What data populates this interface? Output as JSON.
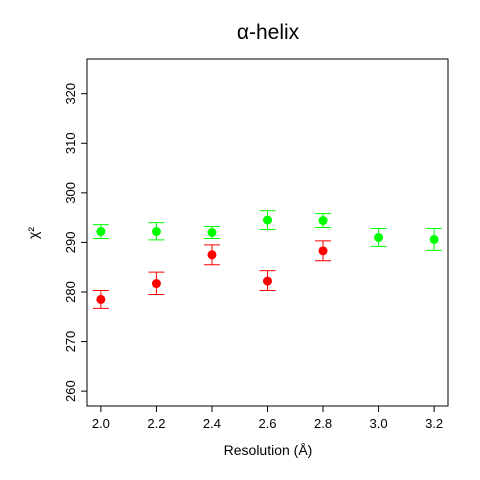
{
  "chart_data": {
    "type": "scatter",
    "title": "α-helix",
    "xlabel": "Resolution (Å)",
    "ylabel": "χ²",
    "xlim": [
      1.95,
      3.25
    ],
    "ylim": [
      257,
      327
    ],
    "x_ticks": [
      "2.0",
      "2.2",
      "2.4",
      "2.6",
      "2.8",
      "3.0",
      "3.2"
    ],
    "y_ticks": [
      "260",
      "270",
      "280",
      "290",
      "300",
      "310",
      "320"
    ],
    "grid": false,
    "legend": "none",
    "series": [
      {
        "color": "#ff0000",
        "points": [
          {
            "x": 2.0,
            "y": 278.5,
            "lo": 276.7,
            "hi": 280.3
          },
          {
            "x": 2.2,
            "y": 281.7,
            "lo": 279.5,
            "hi": 284.0
          },
          {
            "x": 2.4,
            "y": 287.5,
            "lo": 285.5,
            "hi": 289.5
          },
          {
            "x": 2.6,
            "y": 282.2,
            "lo": 280.3,
            "hi": 284.3
          },
          {
            "x": 2.8,
            "y": 288.3,
            "lo": 286.3,
            "hi": 290.3
          }
        ]
      },
      {
        "color": "#00ff00",
        "points": [
          {
            "x": 2.0,
            "y": 292.2,
            "lo": 290.8,
            "hi": 293.6
          },
          {
            "x": 2.2,
            "y": 292.2,
            "lo": 290.5,
            "hi": 294.0
          },
          {
            "x": 2.4,
            "y": 292.0,
            "lo": 290.8,
            "hi": 293.2
          },
          {
            "x": 2.6,
            "y": 294.5,
            "lo": 292.6,
            "hi": 296.4
          },
          {
            "x": 2.8,
            "y": 294.4,
            "lo": 293.0,
            "hi": 295.8
          },
          {
            "x": 3.0,
            "y": 291.0,
            "lo": 289.2,
            "hi": 292.8
          },
          {
            "x": 3.2,
            "y": 290.6,
            "lo": 288.4,
            "hi": 292.8
          }
        ]
      }
    ]
  }
}
